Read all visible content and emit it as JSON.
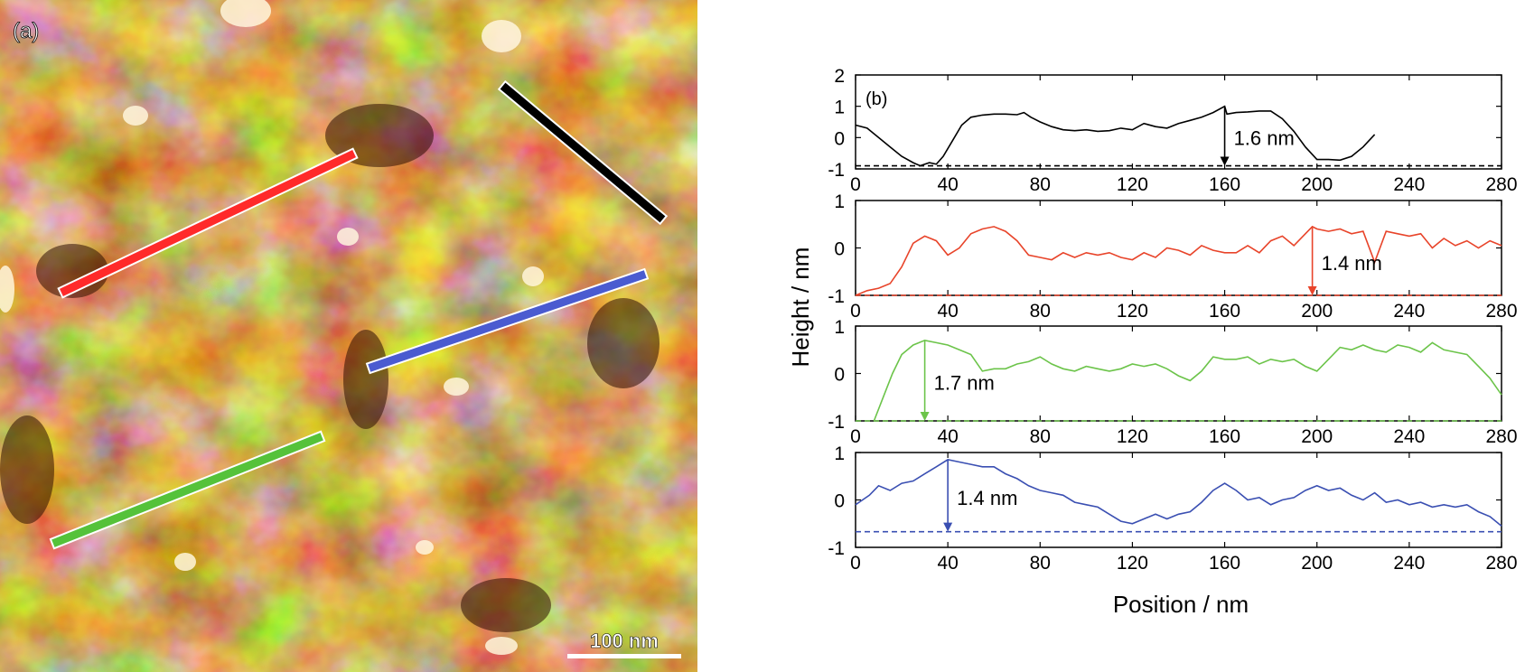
{
  "panel_a": {
    "label": "(a)",
    "scale_bar_label": "100 nm",
    "line_colors": [
      "#000000",
      "#ff2a2a",
      "#4a5bd0",
      "#55c23a"
    ]
  },
  "panel_b": {
    "label": "(b)"
  },
  "chart_data": [
    {
      "type": "line",
      "title": "",
      "xlabel": "Position / nm",
      "ylabel": "Height / nm",
      "xlim": [
        0,
        280
      ],
      "ylim": [
        -1,
        2
      ],
      "xticks": [
        0,
        40,
        80,
        120,
        160,
        200,
        240,
        280
      ],
      "yticks": [
        -1,
        0,
        1,
        2
      ],
      "color": "#000000",
      "baseline": -0.9,
      "series": [
        {
          "x": [
            0,
            5,
            10,
            15,
            20,
            25,
            28,
            32,
            35,
            38,
            42,
            46,
            50,
            55,
            60,
            65,
            70,
            73,
            76,
            80,
            85,
            90,
            95,
            100,
            105,
            110,
            115,
            120,
            125,
            130,
            135,
            140,
            145,
            150,
            155,
            160,
            161,
            165,
            170,
            175,
            180,
            185,
            190,
            195,
            200,
            205,
            210,
            215,
            220,
            225
          ],
          "values": [
            0.4,
            0.3,
            0.0,
            -0.3,
            -0.6,
            -0.8,
            -0.9,
            -0.8,
            -0.85,
            -0.6,
            -0.1,
            0.4,
            0.65,
            0.72,
            0.75,
            0.75,
            0.73,
            0.8,
            0.65,
            0.5,
            0.35,
            0.25,
            0.22,
            0.25,
            0.2,
            0.22,
            0.3,
            0.25,
            0.45,
            0.35,
            0.3,
            0.45,
            0.55,
            0.65,
            0.8,
            1.0,
            0.75,
            0.8,
            0.82,
            0.85,
            0.85,
            0.6,
            0.2,
            -0.3,
            -0.7,
            -0.7,
            -0.72,
            -0.6,
            -0.3,
            0.1
          ]
        }
      ],
      "annotation": {
        "text": "1.6 nm",
        "x": 160,
        "y_top": 1.0
      }
    },
    {
      "type": "line",
      "title": "",
      "xlabel": "Position / nm",
      "ylabel": "Height / nm",
      "xlim": [
        0,
        280
      ],
      "ylim": [
        -1,
        1
      ],
      "xticks": [
        0,
        40,
        80,
        120,
        160,
        200,
        240,
        280
      ],
      "yticks": [
        -1,
        0,
        1
      ],
      "color": "#e8442a",
      "baseline": -1.0,
      "series": [
        {
          "x": [
            0,
            5,
            10,
            15,
            20,
            25,
            30,
            35,
            40,
            45,
            50,
            55,
            60,
            65,
            70,
            75,
            80,
            85,
            90,
            95,
            100,
            105,
            110,
            115,
            120,
            125,
            130,
            135,
            140,
            145,
            150,
            155,
            160,
            165,
            170,
            175,
            180,
            185,
            190,
            195,
            198,
            200,
            205,
            210,
            215,
            220,
            225,
            230,
            235,
            240,
            245,
            250,
            255,
            260,
            265,
            270,
            275,
            280
          ],
          "values": [
            -1.0,
            -0.9,
            -0.85,
            -0.75,
            -0.4,
            0.1,
            0.25,
            0.15,
            -0.15,
            0.0,
            0.3,
            0.4,
            0.45,
            0.35,
            0.15,
            -0.15,
            -0.2,
            -0.25,
            -0.1,
            -0.2,
            -0.1,
            -0.15,
            -0.1,
            -0.2,
            -0.25,
            -0.1,
            -0.2,
            0.0,
            -0.05,
            -0.15,
            0.05,
            -0.05,
            -0.1,
            -0.1,
            0.05,
            -0.1,
            0.15,
            0.25,
            0.05,
            0.3,
            0.45,
            0.4,
            0.35,
            0.4,
            0.3,
            0.35,
            -0.3,
            0.35,
            0.3,
            0.25,
            0.3,
            0.0,
            0.2,
            0.05,
            0.15,
            0.0,
            0.15,
            0.05
          ]
        }
      ],
      "annotation": {
        "text": "1.4 nm",
        "x": 198,
        "y_top": 0.45
      }
    },
    {
      "type": "line",
      "title": "",
      "xlabel": "Position / nm",
      "ylabel": "Height / nm",
      "xlim": [
        0,
        280
      ],
      "ylim": [
        -1,
        1
      ],
      "xticks": [
        0,
        40,
        80,
        120,
        160,
        200,
        240,
        280
      ],
      "yticks": [
        -1,
        0,
        1
      ],
      "color": "#6cc44a",
      "baseline": -1.0,
      "series": [
        {
          "x": [
            8,
            12,
            16,
            20,
            25,
            30,
            35,
            40,
            45,
            50,
            55,
            60,
            65,
            70,
            75,
            80,
            85,
            90,
            95,
            100,
            105,
            110,
            115,
            120,
            125,
            130,
            135,
            140,
            145,
            150,
            155,
            160,
            165,
            170,
            175,
            180,
            185,
            190,
            195,
            200,
            205,
            210,
            215,
            220,
            225,
            230,
            235,
            240,
            245,
            250,
            255,
            260,
            265,
            270,
            275,
            280
          ],
          "values": [
            -1.0,
            -0.5,
            0.0,
            0.4,
            0.6,
            0.7,
            0.65,
            0.6,
            0.5,
            0.4,
            0.05,
            0.1,
            0.1,
            0.2,
            0.25,
            0.35,
            0.2,
            0.1,
            0.05,
            0.15,
            0.1,
            0.05,
            0.1,
            0.2,
            0.15,
            0.2,
            0.1,
            -0.05,
            -0.15,
            0.05,
            0.35,
            0.3,
            0.3,
            0.35,
            0.2,
            0.3,
            0.25,
            0.3,
            0.15,
            0.05,
            0.3,
            0.55,
            0.5,
            0.6,
            0.5,
            0.45,
            0.6,
            0.55,
            0.45,
            0.65,
            0.5,
            0.45,
            0.4,
            0.15,
            -0.1,
            -0.45
          ]
        }
      ],
      "annotation": {
        "text": "1.7 nm",
        "x": 30,
        "y_top": 0.7
      }
    },
    {
      "type": "line",
      "title": "",
      "xlabel": "Position / nm",
      "ylabel": "Height / nm",
      "xlim": [
        0,
        280
      ],
      "ylim": [
        -1,
        1
      ],
      "xticks": [
        0,
        40,
        80,
        120,
        160,
        200,
        240,
        280
      ],
      "yticks": [
        -1,
        0,
        1
      ],
      "color": "#3a4fb2",
      "baseline": -0.67,
      "series": [
        {
          "x": [
            0,
            3,
            6,
            10,
            15,
            20,
            25,
            30,
            35,
            40,
            45,
            50,
            55,
            60,
            65,
            70,
            75,
            80,
            85,
            90,
            95,
            100,
            105,
            110,
            115,
            120,
            125,
            130,
            135,
            140,
            145,
            150,
            155,
            160,
            165,
            170,
            175,
            180,
            185,
            190,
            195,
            200,
            205,
            210,
            215,
            220,
            225,
            230,
            235,
            240,
            245,
            250,
            255,
            260,
            265,
            270,
            275,
            280
          ],
          "values": [
            -0.1,
            0.0,
            0.1,
            0.3,
            0.2,
            0.35,
            0.4,
            0.55,
            0.7,
            0.85,
            0.8,
            0.75,
            0.7,
            0.7,
            0.55,
            0.45,
            0.3,
            0.2,
            0.15,
            0.1,
            -0.05,
            -0.1,
            -0.15,
            -0.3,
            -0.45,
            -0.5,
            -0.4,
            -0.3,
            -0.4,
            -0.3,
            -0.25,
            -0.05,
            0.2,
            0.35,
            0.2,
            0.0,
            0.05,
            -0.1,
            0.0,
            0.05,
            0.2,
            0.3,
            0.2,
            0.25,
            0.1,
            0.0,
            0.15,
            -0.05,
            0.0,
            -0.1,
            -0.05,
            -0.15,
            -0.1,
            -0.15,
            -0.1,
            -0.25,
            -0.35,
            -0.55
          ]
        }
      ],
      "annotation": {
        "text": "1.4 nm",
        "x": 40,
        "y_top": 0.85
      }
    }
  ]
}
